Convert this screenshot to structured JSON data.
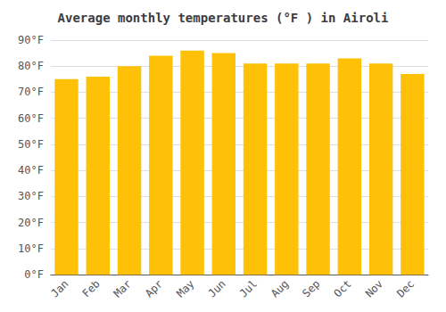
{
  "chart_data": {
    "type": "bar",
    "title": "Average monthly temperatures (°F ) in Airoli",
    "categories": [
      "Jan",
      "Feb",
      "Mar",
      "Apr",
      "May",
      "Jun",
      "Jul",
      "Aug",
      "Sep",
      "Oct",
      "Nov",
      "Dec"
    ],
    "values": [
      75,
      76,
      80,
      84,
      86,
      85,
      81,
      81,
      81,
      83,
      81,
      77
    ],
    "color": "#FFC107",
    "ylim": [
      0,
      90
    ],
    "yticks": [
      {
        "value": 0,
        "label": "0°F"
      },
      {
        "value": 10,
        "label": "10°F"
      },
      {
        "value": 20,
        "label": "20°F"
      },
      {
        "value": 30,
        "label": "30°F"
      },
      {
        "value": 40,
        "label": "40°F"
      },
      {
        "value": 50,
        "label": "50°F"
      },
      {
        "value": 60,
        "label": "60°F"
      },
      {
        "value": 70,
        "label": "70°F"
      },
      {
        "value": 80,
        "label": "80°F"
      },
      {
        "value": 90,
        "label": "90°F"
      }
    ],
    "grid": true
  }
}
